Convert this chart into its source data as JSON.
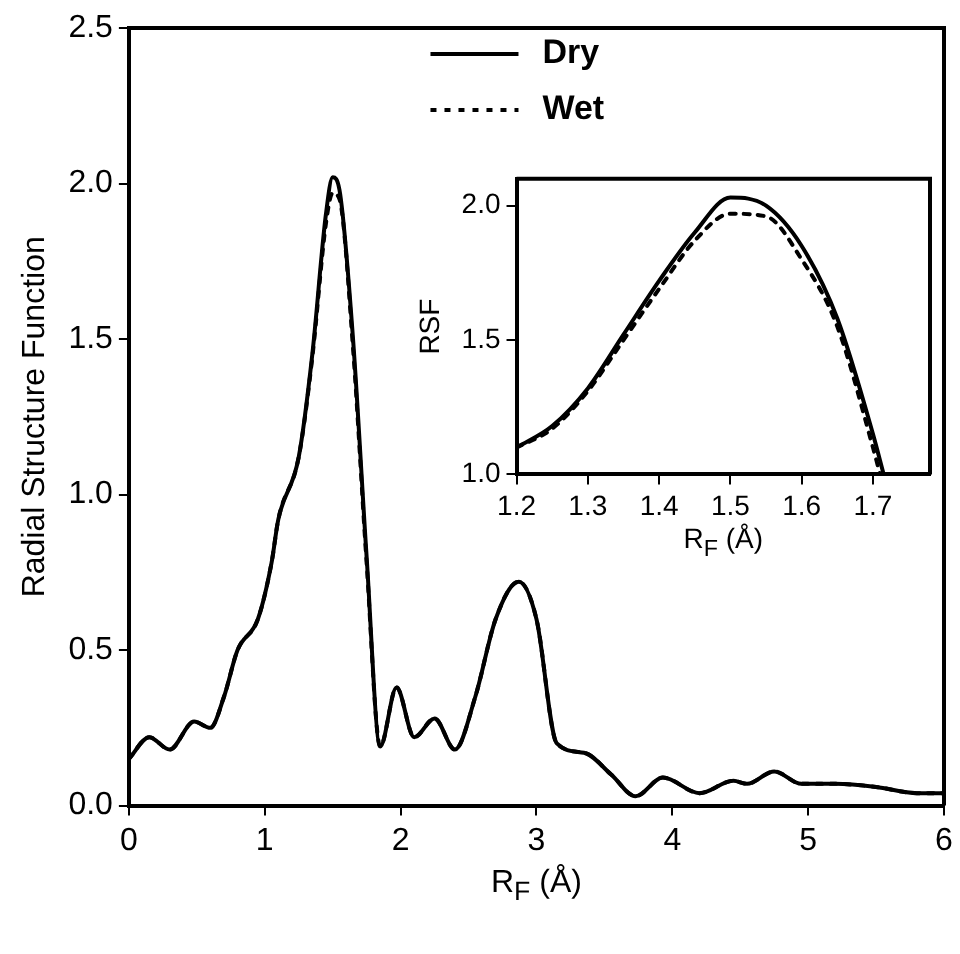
{
  "chart_data": [
    {
      "type": "line",
      "xlabel": "R$_{F}$ (Å)",
      "ylabel": "Radial Structure Function",
      "xlim": [
        0,
        6
      ],
      "ylim": [
        0,
        2.5
      ],
      "xticks": [
        0,
        1,
        2,
        3,
        4,
        5,
        6
      ],
      "yticks": [
        {
          "value": 0,
          "label": "0.0"
        },
        0.5,
        {
          "value": 1,
          "label": "1.0"
        },
        1.5,
        {
          "value": 2,
          "label": "2.0"
        },
        2.5
      ],
      "legend": "top",
      "grid": false,
      "marker": "none",
      "series": [
        {
          "name": "Dry",
          "color": "#000000",
          "line_style": "solid",
          "x": [
            0,
            0.15,
            0.3,
            0.48,
            0.6,
            0.7,
            0.8,
            0.95,
            1.05,
            1.1,
            1.25,
            1.35,
            1.45,
            1.5,
            1.55,
            1.65,
            1.75,
            1.85,
            1.97,
            2.1,
            2.25,
            2.4,
            2.55,
            2.7,
            2.87,
            3.0,
            3.15,
            3.35,
            3.55,
            3.73,
            3.93,
            4.2,
            4.45,
            4.55,
            4.75,
            4.95,
            5.2,
            5.5,
            5.8,
            6.0
          ],
          "values": [
            0.15,
            0.22,
            0.18,
            0.27,
            0.25,
            0.35,
            0.5,
            0.6,
            0.78,
            0.92,
            1.12,
            1.45,
            1.9,
            2.02,
            1.98,
            1.5,
            0.8,
            0.19,
            0.38,
            0.22,
            0.28,
            0.18,
            0.35,
            0.6,
            0.72,
            0.6,
            0.2,
            0.17,
            0.1,
            0.03,
            0.09,
            0.04,
            0.08,
            0.07,
            0.11,
            0.07,
            0.07,
            0.06,
            0.04,
            0.04
          ]
        },
        {
          "name": "Wet",
          "color": "#000000",
          "line_style": "dotted",
          "x": [
            0,
            0.15,
            0.3,
            0.48,
            0.6,
            0.7,
            0.8,
            0.95,
            1.05,
            1.1,
            1.25,
            1.35,
            1.45,
            1.5,
            1.55,
            1.65,
            1.75,
            1.85,
            1.97,
            2.1,
            2.25,
            2.4,
            2.55,
            2.7,
            2.87,
            3.0,
            3.15,
            3.35,
            3.55,
            3.73,
            3.93,
            4.2,
            4.45,
            4.55,
            4.75,
            4.95,
            5.2,
            5.5,
            5.8,
            6.0
          ],
          "values": [
            0.15,
            0.22,
            0.18,
            0.27,
            0.25,
            0.35,
            0.5,
            0.6,
            0.78,
            0.92,
            1.12,
            1.44,
            1.87,
            1.97,
            1.95,
            1.47,
            0.78,
            0.19,
            0.38,
            0.22,
            0.28,
            0.18,
            0.35,
            0.6,
            0.72,
            0.6,
            0.2,
            0.17,
            0.1,
            0.03,
            0.09,
            0.04,
            0.08,
            0.07,
            0.11,
            0.07,
            0.07,
            0.06,
            0.04,
            0.04
          ]
        }
      ]
    },
    {
      "type": "line",
      "xlabel": "R$_{F}$ (Å)",
      "ylabel": "RSF",
      "xlim": [
        1.2,
        1.78
      ],
      "ylim": [
        1.0,
        2.1
      ],
      "xticks": [
        1.2,
        1.3,
        1.4,
        1.5,
        1.6,
        1.7
      ],
      "yticks": [
        {
          "value": 1,
          "label": "1.0"
        },
        1.5,
        {
          "value": 2,
          "label": "2.0"
        }
      ],
      "grid": false,
      "marker": "none",
      "series": [
        {
          "color": "#000000",
          "line_style": "solid",
          "x": [
            1.2,
            1.25,
            1.3,
            1.35,
            1.4,
            1.45,
            1.5,
            1.55,
            1.6,
            1.65,
            1.7,
            1.715
          ],
          "values": [
            1.1,
            1.18,
            1.32,
            1.52,
            1.72,
            1.9,
            2.03,
            2.0,
            1.85,
            1.58,
            1.15,
            1.0
          ]
        },
        {
          "color": "#000000",
          "line_style": "dotted",
          "x": [
            1.2,
            1.25,
            1.3,
            1.35,
            1.4,
            1.45,
            1.5,
            1.55,
            1.6,
            1.65,
            1.7,
            1.71
          ],
          "values": [
            1.1,
            1.17,
            1.31,
            1.5,
            1.69,
            1.87,
            1.97,
            1.96,
            1.8,
            1.55,
            1.1,
            1.0
          ]
        }
      ]
    }
  ]
}
